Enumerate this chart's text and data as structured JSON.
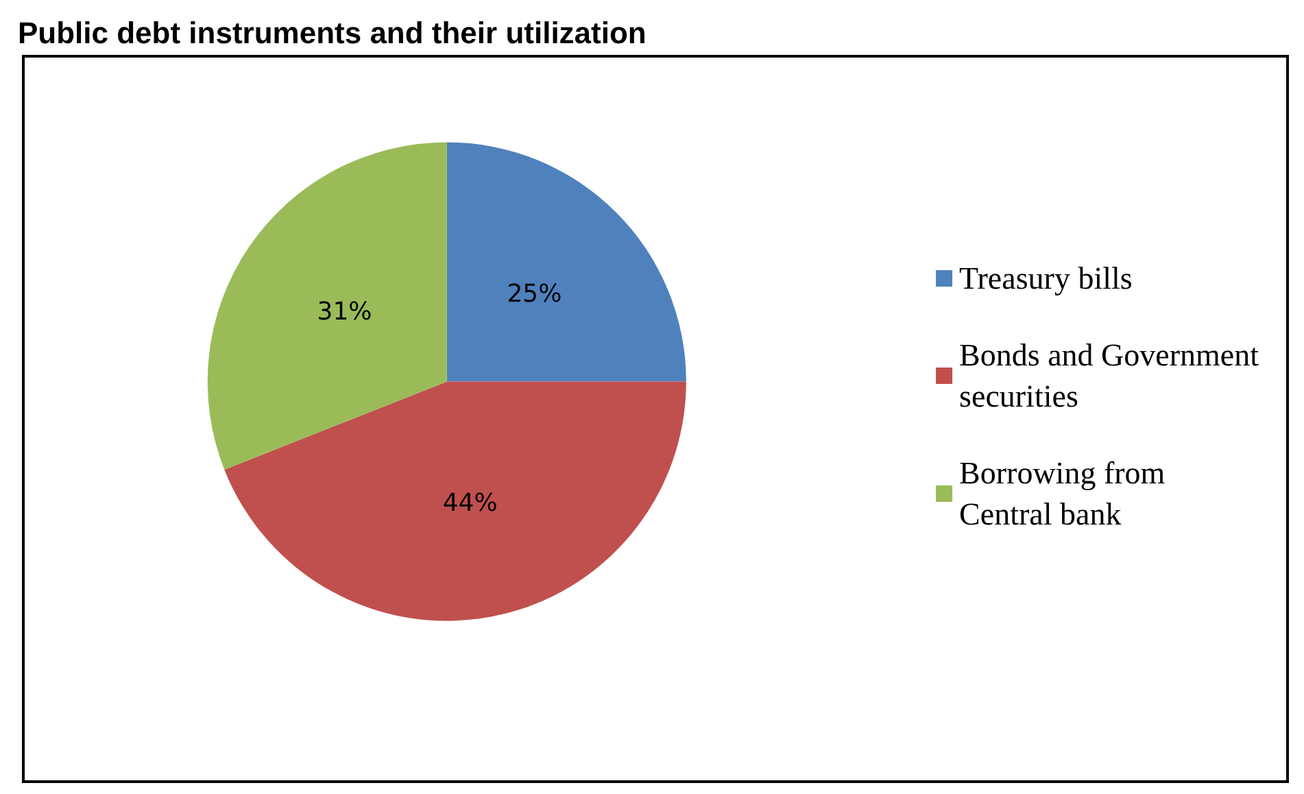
{
  "chart_data": {
    "type": "pie",
    "title": "Public debt instruments and their utilization",
    "categories": [
      "Treasury bills",
      "Bonds and Government securities",
      "Borrowing from Central bank"
    ],
    "values": [
      25,
      44,
      31
    ],
    "colors": [
      "#4f81bd",
      "#c0504d",
      "#9bbb59"
    ],
    "value_labels": [
      "25%",
      "44%",
      "31%"
    ],
    "legend": "right"
  }
}
